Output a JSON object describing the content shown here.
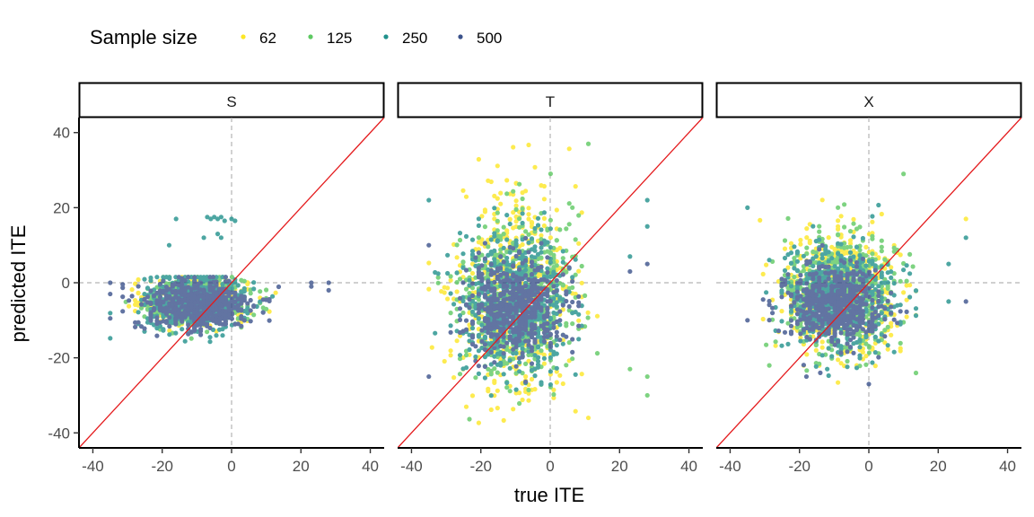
{
  "chart_data": {
    "type": "scatter",
    "facets": [
      "S",
      "T",
      "X"
    ],
    "xlabel": "true ITE",
    "ylabel": "predicted ITE",
    "xlim": [
      -44,
      44
    ],
    "ylim": [
      -44,
      44
    ],
    "x_ticks": [
      -40,
      -20,
      0,
      20,
      40
    ],
    "y_ticks": [
      -40,
      -20,
      0,
      20,
      40
    ],
    "x_tick_labels": [
      "-40",
      "-20",
      "0",
      "20",
      "40"
    ],
    "y_tick_labels": [
      "-40",
      "-20",
      "0",
      "20",
      "40"
    ],
    "reference_lines": {
      "identity": {
        "slope": 1,
        "intercept": 0,
        "color": "#e41a1c"
      },
      "zero_lines": {
        "x": 0,
        "y": 0,
        "color": "#b3b3b3",
        "style": "dashed"
      }
    },
    "legend": {
      "title": "Sample size",
      "position": "top-left",
      "entries": [
        {
          "label": "62",
          "color": "#fde725"
        },
        {
          "label": "125",
          "color": "#5ec962"
        },
        {
          "label": "250",
          "color": "#21918c"
        },
        {
          "label": "500",
          "color": "#3b528b"
        }
      ]
    },
    "grid": false,
    "panels": [
      {
        "facet": "S",
        "clusters": [
          {
            "series": "62",
            "x": -10,
            "y": -5,
            "sx": 7,
            "sy": 3
          },
          {
            "series": "125",
            "x": -10,
            "y": -5,
            "sx": 7,
            "sy": 3
          },
          {
            "series": "250",
            "x": -10,
            "y": -5,
            "sx": 7,
            "sy": 3.5
          },
          {
            "series": "500",
            "x": -10,
            "y": -6,
            "sx": 8,
            "sy": 3.5
          }
        ],
        "points": [
          {
            "series": "250",
            "x": -16,
            "y": 17
          },
          {
            "series": "250",
            "x": -7,
            "y": 17.5
          },
          {
            "series": "250",
            "x": -6,
            "y": 17
          },
          {
            "series": "250",
            "x": -5,
            "y": 17.5
          },
          {
            "series": "250",
            "x": -4,
            "y": 17
          },
          {
            "series": "250",
            "x": -3,
            "y": 17.5
          },
          {
            "series": "250",
            "x": -2,
            "y": 16.5
          },
          {
            "series": "250",
            "x": 0,
            "y": 17
          },
          {
            "series": "250",
            "x": 1,
            "y": 16.5
          },
          {
            "series": "250",
            "x": -18,
            "y": 10
          },
          {
            "series": "250",
            "x": -8,
            "y": 12
          },
          {
            "series": "250",
            "x": -4,
            "y": 13
          },
          {
            "series": "250",
            "x": -3,
            "y": 12
          },
          {
            "series": "500",
            "x": 23,
            "y": 0
          },
          {
            "series": "500",
            "x": 23,
            "y": -1
          },
          {
            "series": "500",
            "x": 28,
            "y": 0
          },
          {
            "series": "500",
            "x": 28,
            "y": -2
          },
          {
            "series": "500",
            "x": -35,
            "y": 0
          },
          {
            "series": "500",
            "x": -35,
            "y": -3
          }
        ]
      },
      {
        "facet": "T",
        "clusters": [
          {
            "series": "62",
            "x": -10,
            "y": -3,
            "sx": 8,
            "sy": 14
          },
          {
            "series": "125",
            "x": -10,
            "y": -4,
            "sx": 8,
            "sy": 11
          },
          {
            "series": "250",
            "x": -10,
            "y": -5,
            "sx": 8,
            "sy": 9
          },
          {
            "series": "500",
            "x": -10,
            "y": -6,
            "sx": 7,
            "sy": 6
          }
        ],
        "points": [
          {
            "series": "62",
            "x": 11,
            "y": -36
          },
          {
            "series": "125",
            "x": 23,
            "y": -23
          },
          {
            "series": "125",
            "x": 28,
            "y": -25
          },
          {
            "series": "125",
            "x": 28,
            "y": -30
          },
          {
            "series": "125",
            "x": 11,
            "y": 37
          },
          {
            "series": "250",
            "x": 28,
            "y": 22
          },
          {
            "series": "250",
            "x": 28,
            "y": 15
          },
          {
            "series": "250",
            "x": 23,
            "y": 7
          },
          {
            "series": "500",
            "x": 23,
            "y": 3
          },
          {
            "series": "500",
            "x": 28,
            "y": 5
          },
          {
            "series": "500",
            "x": -35,
            "y": -25
          },
          {
            "series": "250",
            "x": -35,
            "y": 22
          },
          {
            "series": "500",
            "x": -35,
            "y": 10
          }
        ]
      },
      {
        "facet": "X",
        "clusters": [
          {
            "series": "62",
            "x": -8,
            "y": -3,
            "sx": 8,
            "sy": 8
          },
          {
            "series": "125",
            "x": -8,
            "y": -3,
            "sx": 8,
            "sy": 8
          },
          {
            "series": "250",
            "x": -9,
            "y": -4,
            "sx": 8,
            "sy": 7
          },
          {
            "series": "500",
            "x": -10,
            "y": -6,
            "sx": 7,
            "sy": 5
          }
        ],
        "points": [
          {
            "series": "62",
            "x": 28,
            "y": 17
          },
          {
            "series": "125",
            "x": 10,
            "y": 29
          },
          {
            "series": "250",
            "x": -12,
            "y": -23
          },
          {
            "series": "500",
            "x": -14,
            "y": -24
          },
          {
            "series": "500",
            "x": -18,
            "y": -25
          },
          {
            "series": "500",
            "x": 0,
            "y": -27
          },
          {
            "series": "250",
            "x": 23,
            "y": 5
          },
          {
            "series": "250",
            "x": 28,
            "y": 12
          },
          {
            "series": "500",
            "x": 28,
            "y": -5
          },
          {
            "series": "250",
            "x": 23,
            "y": -5
          },
          {
            "series": "250",
            "x": -35,
            "y": 20
          },
          {
            "series": "500",
            "x": -35,
            "y": -10
          }
        ]
      }
    ]
  }
}
